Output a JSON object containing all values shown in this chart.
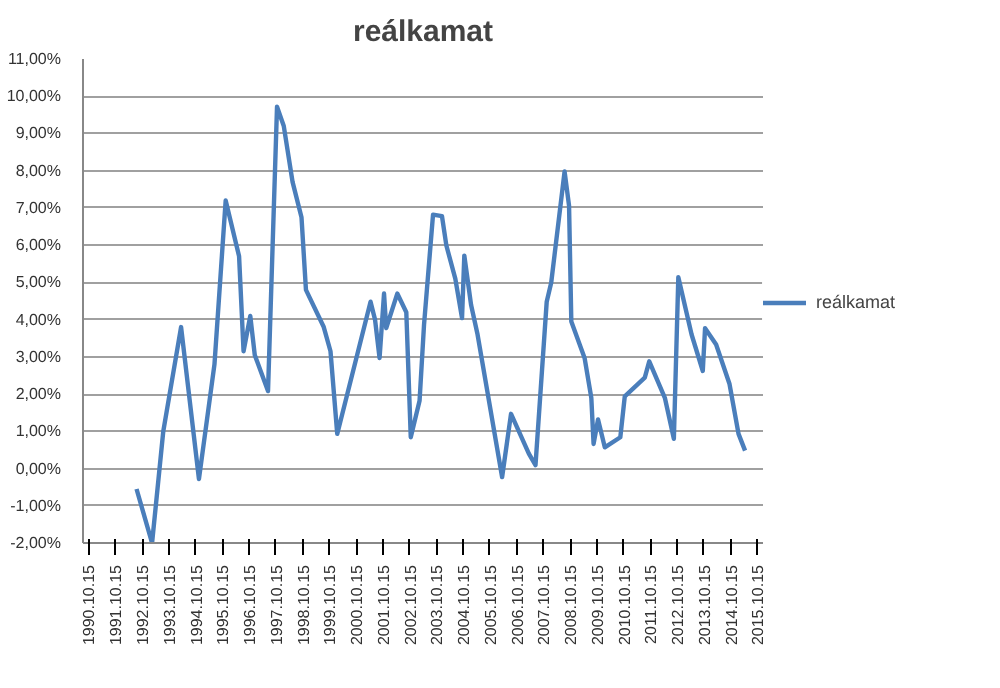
{
  "chart_data": {
    "type": "line",
    "title": "reálkamat",
    "x": [
      "1992-08",
      "1993-03",
      "1993-08",
      "1994-04",
      "1994-12",
      "1995-07",
      "1995-12",
      "1996-06",
      "1996-08",
      "1996-11",
      "1997-01",
      "1997-07",
      "1997-11",
      "1998-02",
      "1998-06",
      "1998-10",
      "1998-12",
      "1999-08",
      "1999-11",
      "2000-02",
      "2001-05",
      "2001-07",
      "2001-09",
      "2001-11",
      "2001-12",
      "2002-05",
      "2002-09",
      "2002-11",
      "2003-03",
      "2003-05",
      "2003-09",
      "2004-01",
      "2004-03",
      "2004-07",
      "2004-10",
      "2004-11",
      "2005-02",
      "2005-05",
      "2006-04",
      "2006-08",
      "2007-04",
      "2007-07",
      "2007-12",
      "2008-02",
      "2008-08",
      "2008-10",
      "2008-11",
      "2009-05",
      "2009-08",
      "2009-09",
      "2009-11",
      "2010-02",
      "2010-09",
      "2010-11",
      "2011-08",
      "2011-10",
      "2012-05",
      "2012-09",
      "2012-11",
      "2013-05",
      "2013-10",
      "2013-11",
      "2014-04",
      "2014-10",
      "2015-02",
      "2015-05"
    ],
    "series": [
      {
        "name": "reálkamat",
        "color": "#4a7ebb",
        "values": [
          -0.55,
          -2.0,
          1.0,
          3.8,
          -0.28,
          2.8,
          7.2,
          5.7,
          3.15,
          4.1,
          3.05,
          2.08,
          9.72,
          9.2,
          7.7,
          6.75,
          4.8,
          3.8,
          3.15,
          0.93,
          4.48,
          4.0,
          2.97,
          4.7,
          3.77,
          4.7,
          4.2,
          0.84,
          1.82,
          3.86,
          6.82,
          6.78,
          5.99,
          5.1,
          4.04,
          5.72,
          4.4,
          3.6,
          -0.23,
          1.47,
          0.4,
          0.09,
          4.48,
          5.0,
          7.98,
          7.06,
          3.95,
          2.97,
          1.9,
          0.66,
          1.32,
          0.57,
          0.84,
          1.94,
          2.44,
          2.88,
          1.9,
          0.8,
          5.14,
          3.6,
          2.62,
          3.77,
          3.33,
          2.27,
          0.93,
          0.48
        ]
      }
    ],
    "xlim": [
      "1990-08-01",
      "2016-01-01"
    ],
    "xticks": [
      {
        "value": "1990-10-15",
        "label": "1990.10.15"
      },
      {
        "value": "1991-10-15",
        "label": "1991.10.15"
      },
      {
        "value": "1992-10-15",
        "label": "1992.10.15"
      },
      {
        "value": "1993-10-15",
        "label": "1993.10.15"
      },
      {
        "value": "1994-10-15",
        "label": "1994.10.15"
      },
      {
        "value": "1995-10-15",
        "label": "1995.10.15"
      },
      {
        "value": "1996-10-15",
        "label": "1996.10.15"
      },
      {
        "value": "1997-10-15",
        "label": "1997.10.15"
      },
      {
        "value": "1998-10-15",
        "label": "1998.10.15"
      },
      {
        "value": "1999-10-15",
        "label": "1999.10.15"
      },
      {
        "value": "2000-10-15",
        "label": "2000.10.15"
      },
      {
        "value": "2001-10-15",
        "label": "2001.10.15"
      },
      {
        "value": "2002-10-15",
        "label": "2002.10.15"
      },
      {
        "value": "2003-10-15",
        "label": "2003.10.15"
      },
      {
        "value": "2004-10-15",
        "label": "2004.10.15"
      },
      {
        "value": "2005-10-15",
        "label": "2005.10.15"
      },
      {
        "value": "2006-10-15",
        "label": "2006.10.15"
      },
      {
        "value": "2007-10-15",
        "label": "2007.10.15"
      },
      {
        "value": "2008-10-15",
        "label": "2008.10.15"
      },
      {
        "value": "2009-10-15",
        "label": "2009.10.15"
      },
      {
        "value": "2010-10-15",
        "label": "2010.10.15"
      },
      {
        "value": "2011-10-15",
        "label": "2011.10.15"
      },
      {
        "value": "2012-10-15",
        "label": "2012.10.15"
      },
      {
        "value": "2013-10-15",
        "label": "2013.10.15"
      },
      {
        "value": "2014-10-15",
        "label": "2014.10.15"
      },
      {
        "value": "2015-10-15",
        "label": "2015.10.15"
      }
    ],
    "ylim": [
      -2,
      11
    ],
    "yticks": [
      {
        "value": -2,
        "label": "-2,00%"
      },
      {
        "value": -1,
        "label": "-1,00%"
      },
      {
        "value": 0,
        "label": "0,00%"
      },
      {
        "value": 1,
        "label": "1,00%"
      },
      {
        "value": 2,
        "label": "2,00%"
      },
      {
        "value": 3,
        "label": "3,00%"
      },
      {
        "value": 4,
        "label": "4,00%"
      },
      {
        "value": 5,
        "label": "5,00%"
      },
      {
        "value": 6,
        "label": "6,00%"
      },
      {
        "value": 7,
        "label": "7,00%"
      },
      {
        "value": 8,
        "label": "8,00%"
      },
      {
        "value": 9,
        "label": "9,00%"
      },
      {
        "value": 10,
        "label": "10,00%"
      },
      {
        "value": 11,
        "label": "11,00%"
      }
    ],
    "grid": "y",
    "legend": "right",
    "marker": "none",
    "line_style": "solid"
  }
}
